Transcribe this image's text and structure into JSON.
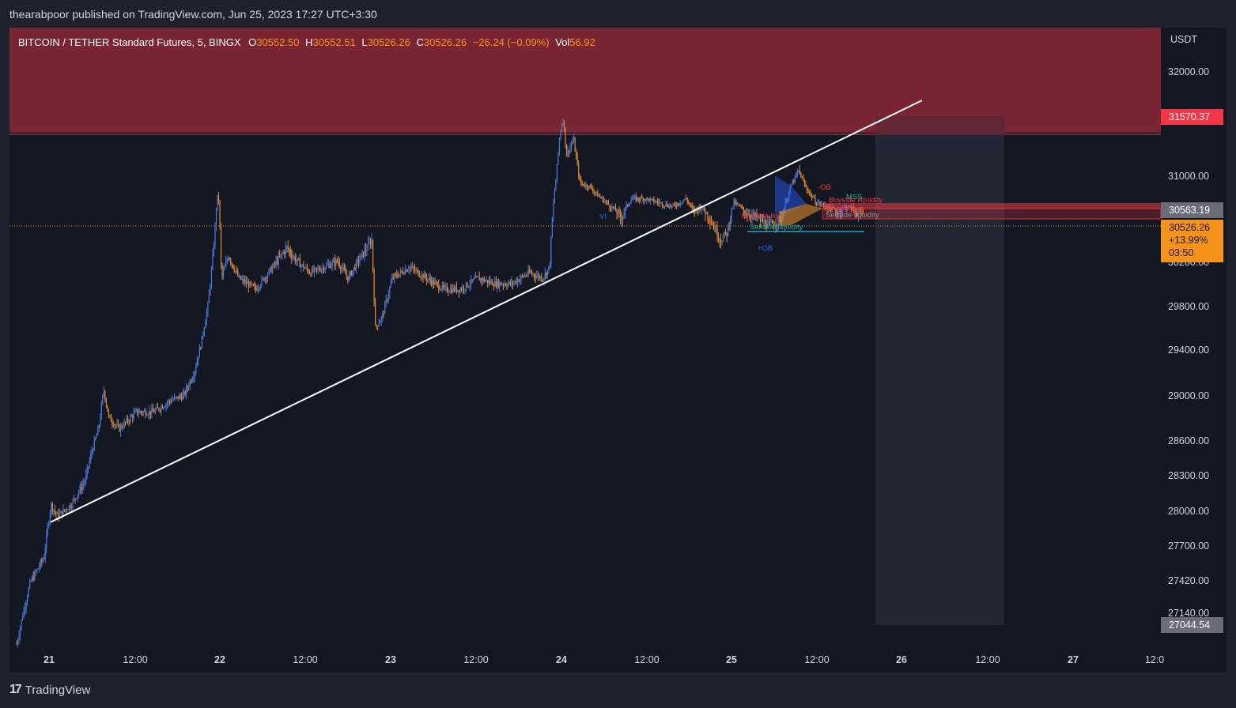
{
  "header": {
    "published": "thearabpoor published on TradingView.com, Jun 25, 2023 17:27 UTC+3:30"
  },
  "footer": {
    "brand": "TradingView",
    "logo_icon": "tradingview-logo-icon"
  },
  "legend": {
    "symbol": "BITCOIN / TETHER Standard Futures, 5, BINGX",
    "o_label": "O",
    "o": "30552.50",
    "h_label": "H",
    "h": "30552.51",
    "l_label": "L",
    "l": "30526.26",
    "c_label": "C",
    "c": "30526.26",
    "change": "−26.24 (−0.09%)",
    "vol_label": "Vol",
    "vol": "56.92"
  },
  "colors": {
    "background": "#131722",
    "zone": "#7a2533",
    "candle_up": "#4a78d8",
    "candle_down": "#e08a2c",
    "trendline": "#ffffff",
    "badge_red": "#f23645",
    "badge_orange": "#f7931a",
    "badge_gray": "#6a6d78"
  },
  "chart_data": {
    "type": "candlestick",
    "currency": "USDT",
    "y_ticks": [
      "32000.00",
      "31570.37",
      "31000.00",
      "30563.19",
      "30200.00",
      "29800.00",
      "29400.00",
      "29000.00",
      "28600.00",
      "28300.00",
      "28000.00",
      "27700.00",
      "27420.00",
      "27140.00",
      "27044.54"
    ],
    "y_tick_values": [
      32000,
      31570.37,
      31000,
      30563.19,
      30200,
      29800,
      29400,
      29000,
      28600,
      28300,
      28000,
      27700,
      27420,
      27140,
      27044.54
    ],
    "x_ticks": [
      {
        "label": "21",
        "bold": true
      },
      {
        "label": "12:00",
        "bold": false
      },
      {
        "label": "22",
        "bold": true
      },
      {
        "label": "12:00",
        "bold": false
      },
      {
        "label": "23",
        "bold": true
      },
      {
        "label": "12:00",
        "bold": false
      },
      {
        "label": "24",
        "bold": true
      },
      {
        "label": "12:00",
        "bold": false
      },
      {
        "label": "25",
        "bold": true
      },
      {
        "label": "12:00",
        "bold": false
      },
      {
        "label": "26",
        "bold": true
      },
      {
        "label": "12:00",
        "bold": false
      },
      {
        "label": "27",
        "bold": true
      },
      {
        "label": "12:0",
        "bold": false
      }
    ],
    "price_path": [
      [
        0,
        26900
      ],
      [
        0.4,
        27400
      ],
      [
        0.8,
        27600
      ],
      [
        1.0,
        28050
      ],
      [
        1.2,
        27950
      ],
      [
        1.6,
        28050
      ],
      [
        2.0,
        28250
      ],
      [
        2.2,
        28500
      ],
      [
        2.4,
        28700
      ],
      [
        2.55,
        29050
      ],
      [
        2.7,
        28800
      ],
      [
        3.0,
        28700
      ],
      [
        3.5,
        28850
      ],
      [
        4.0,
        28850
      ],
      [
        4.5,
        28950
      ],
      [
        4.9,
        29000
      ],
      [
        5.2,
        29200
      ],
      [
        5.4,
        29450
      ],
      [
        5.6,
        29800
      ],
      [
        5.8,
        30400
      ],
      [
        5.9,
        30800
      ],
      [
        6.0,
        30050
      ],
      [
        6.2,
        30250
      ],
      [
        6.5,
        30050
      ],
      [
        7.0,
        29950
      ],
      [
        7.5,
        30150
      ],
      [
        7.9,
        30300
      ],
      [
        8.2,
        30200
      ],
      [
        8.6,
        30100
      ],
      [
        9.0,
        30150
      ],
      [
        9.4,
        30200
      ],
      [
        9.7,
        30050
      ],
      [
        10.0,
        30200
      ],
      [
        10.4,
        30350
      ],
      [
        10.5,
        29600
      ],
      [
        10.7,
        29700
      ],
      [
        11.0,
        30050
      ],
      [
        11.5,
        30150
      ],
      [
        12.0,
        30050
      ],
      [
        12.5,
        29950
      ],
      [
        13.0,
        29950
      ],
      [
        13.5,
        30050
      ],
      [
        14.0,
        30000
      ],
      [
        14.5,
        30000
      ],
      [
        15.0,
        30100
      ],
      [
        15.4,
        30050
      ],
      [
        15.6,
        30150
      ],
      [
        15.75,
        30800
      ],
      [
        15.9,
        31400
      ],
      [
        16.0,
        31550
      ],
      [
        16.1,
        31200
      ],
      [
        16.3,
        31350
      ],
      [
        16.5,
        30900
      ],
      [
        16.8,
        30850
      ],
      [
        17.0,
        30750
      ],
      [
        17.4,
        30600
      ],
      [
        17.7,
        30500
      ],
      [
        18.0,
        30700
      ],
      [
        18.4,
        30700
      ],
      [
        18.8,
        30650
      ],
      [
        19.2,
        30600
      ],
      [
        19.6,
        30700
      ],
      [
        19.8,
        30550
      ],
      [
        20.0,
        30600
      ],
      [
        20.3,
        30500
      ],
      [
        20.6,
        30350
      ],
      [
        20.8,
        30400
      ],
      [
        21.0,
        30650
      ],
      [
        21.3,
        30550
      ],
      [
        21.7,
        30500
      ],
      [
        22.0,
        30450
      ],
      [
        22.4,
        30500
      ],
      [
        22.7,
        30900
      ],
      [
        22.9,
        31050
      ],
      [
        23.1,
        30850
      ],
      [
        23.4,
        30650
      ],
      [
        23.7,
        30600
      ],
      [
        24.0,
        30550
      ],
      [
        24.3,
        30600
      ],
      [
        24.6,
        30550
      ],
      [
        24.8,
        30526
      ]
    ],
    "x_units": "hours offset on axis scale where each label step is 12h",
    "ylim": [
      26950,
      32300
    ],
    "trendline": {
      "from": {
        "day_offset": 1.0,
        "price": 27900
      },
      "to": {
        "day_offset": 26.5,
        "price": 31720
      }
    },
    "resistance_zone": {
      "price_bottom": 31450,
      "price_top": 32300
    },
    "projection_box": {
      "price_top": 31570.37,
      "price_bottom": 27044.54
    },
    "current_price": "30526.26",
    "current_change": "+13.99%",
    "countdown": "03:50",
    "high_marker": "31570.37",
    "mid_marker": "30563.19",
    "low_marker": "27044.54",
    "annotations": [
      {
        "text": "-OB",
        "color": "#f23645"
      },
      {
        "text": "MSS",
        "color": "#22ab94"
      },
      {
        "text": "Buyside liquidity",
        "color": "#f23645"
      },
      {
        "text": "Buyside liq",
        "color": "#f23645"
      },
      {
        "text": "Sellside liquidity",
        "color": "#22ab94"
      },
      {
        "text": "Sellside liquidity",
        "color": "#9598a1"
      },
      {
        "text": "+OB",
        "color": "#2962ff"
      },
      {
        "text": "VI",
        "color": "#2962ff"
      }
    ]
  }
}
